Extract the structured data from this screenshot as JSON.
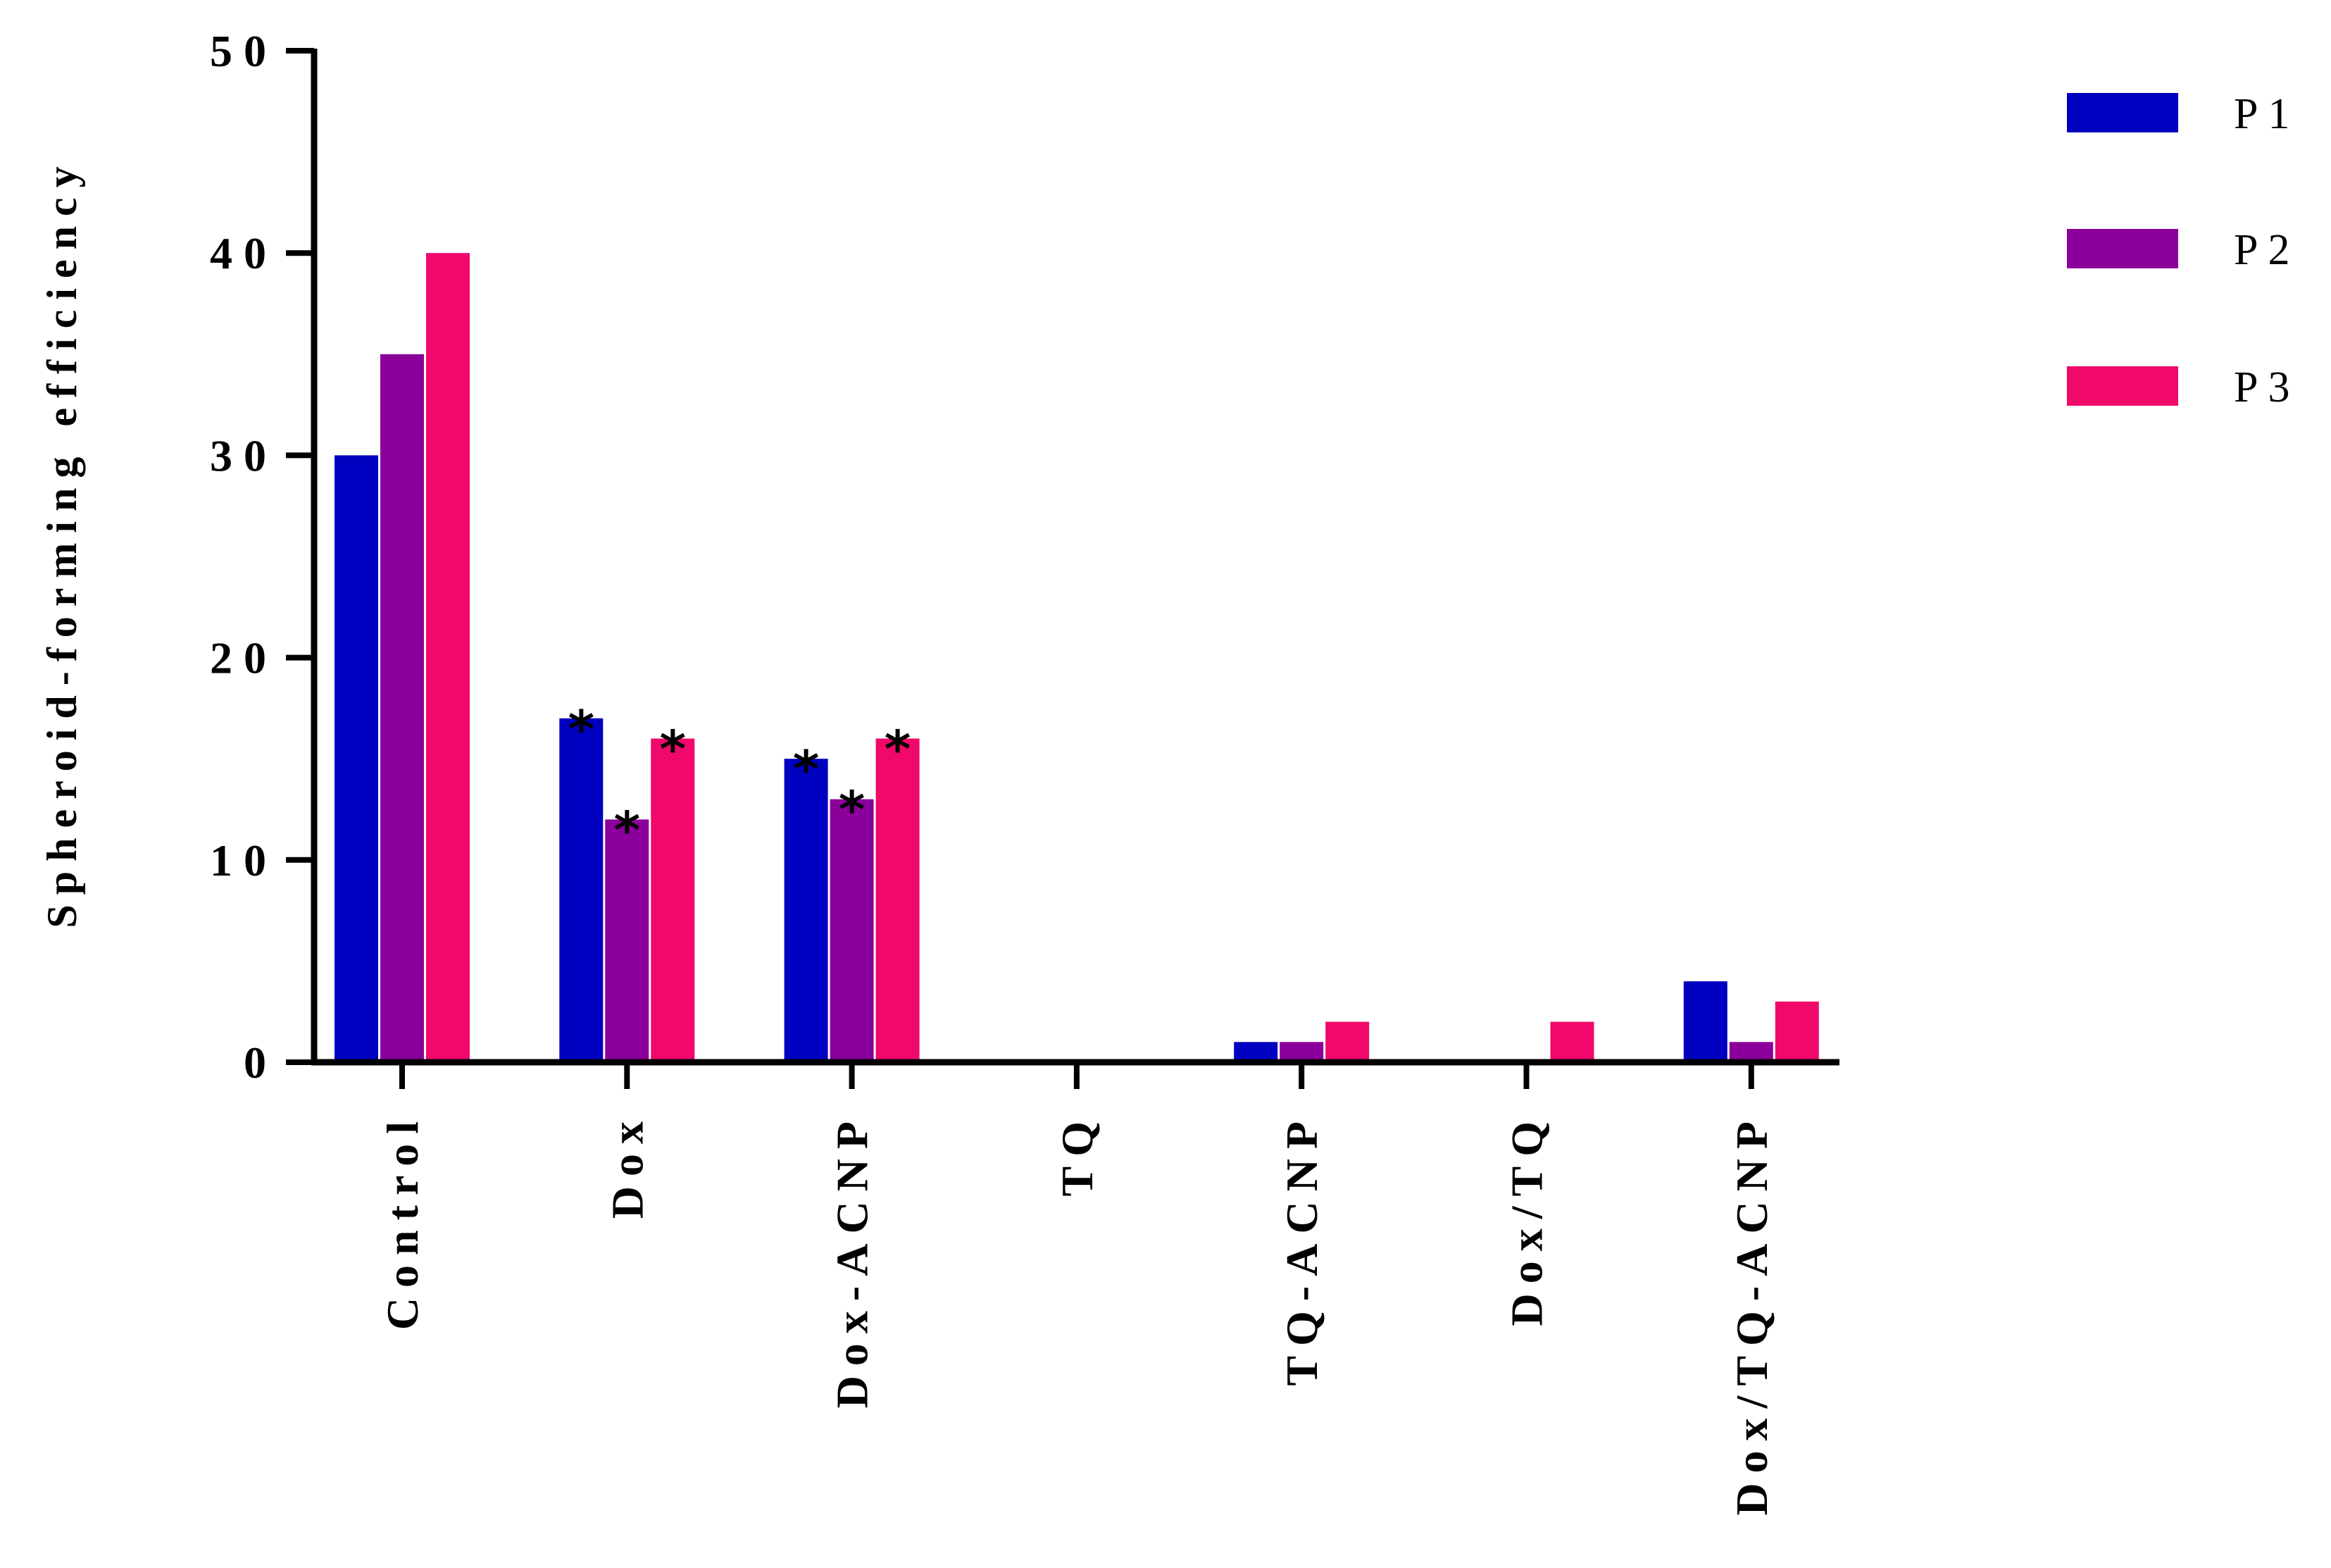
{
  "chart_data": {
    "type": "bar",
    "title": "",
    "xlabel": "",
    "ylabel": "Spheroid-forming efficiency",
    "ylim": [
      0,
      50
    ],
    "yticks": [
      "0",
      "10",
      "20",
      "30",
      "40",
      "50"
    ],
    "grid": false,
    "legend_position": "top-right",
    "categories": [
      "Control",
      "Dox",
      "Dox-ACNP",
      "TQ",
      "TQ-ACNP",
      "Dox/TQ",
      "Dox/TQ-ACNP"
    ],
    "series": [
      {
        "name": "P1",
        "color": "#0000c0",
        "values": [
          30,
          17,
          15,
          0,
          1,
          0,
          4
        ]
      },
      {
        "name": "P2",
        "color": "#8b009b",
        "values": [
          35,
          12,
          13,
          0,
          1,
          0,
          1
        ]
      },
      {
        "name": "P3",
        "color": "#f0086a",
        "values": [
          40,
          16,
          16,
          0,
          2,
          2,
          3
        ]
      }
    ],
    "significance_marker": "*",
    "significant": [
      [
        false,
        true,
        true,
        false,
        false,
        false,
        false
      ],
      [
        false,
        true,
        true,
        false,
        false,
        false,
        false
      ],
      [
        false,
        true,
        true,
        false,
        false,
        false,
        false
      ]
    ]
  }
}
